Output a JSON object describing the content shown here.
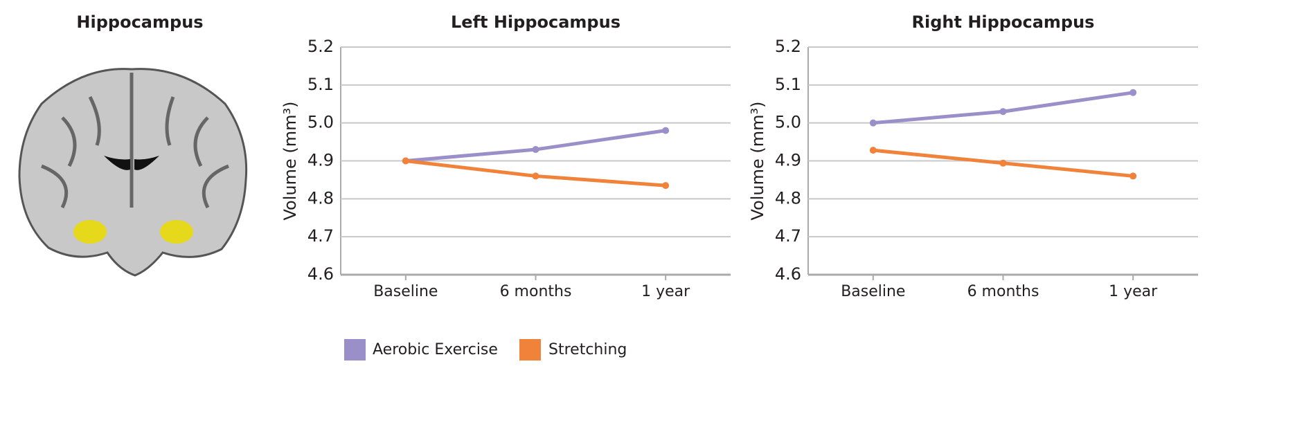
{
  "image": {
    "title": "Hippocampus"
  },
  "chart_data": [
    {
      "type": "line",
      "title": "Left Hippocampus",
      "y_label": "Volume (mm³)",
      "categories": [
        "Baseline",
        "6 months",
        "1 year"
      ],
      "series": [
        {
          "name": "Aerobic Exercise",
          "color": "#9b8fca",
          "values": [
            4.9,
            4.93,
            4.98
          ]
        },
        {
          "name": "Stretching",
          "color": "#f0823a",
          "values": [
            4.9,
            4.86,
            4.835
          ]
        }
      ],
      "ylim": [
        4.6,
        5.2
      ],
      "yticks": [
        4.6,
        4.7,
        4.8,
        4.9,
        {
          "value": 5,
          "label": "5.0"
        },
        5.1,
        5.2
      ],
      "grid": true
    },
    {
      "type": "line",
      "title": "Right Hippocampus",
      "y_label": "Volume (mm³)",
      "categories": [
        "Baseline",
        "6 months",
        "1 year"
      ],
      "series": [
        {
          "color": "#9b8fca",
          "values": [
            5.0,
            5.03,
            5.08
          ]
        },
        {
          "color": "#f0823a",
          "values": [
            4.928,
            4.894,
            4.86
          ]
        }
      ],
      "ylim": [
        4.6,
        5.2
      ],
      "yticks": [
        4.6,
        4.7,
        4.8,
        4.9,
        {
          "value": 5,
          "label": "5.0"
        },
        5.1,
        5.2
      ],
      "grid": true
    }
  ]
}
